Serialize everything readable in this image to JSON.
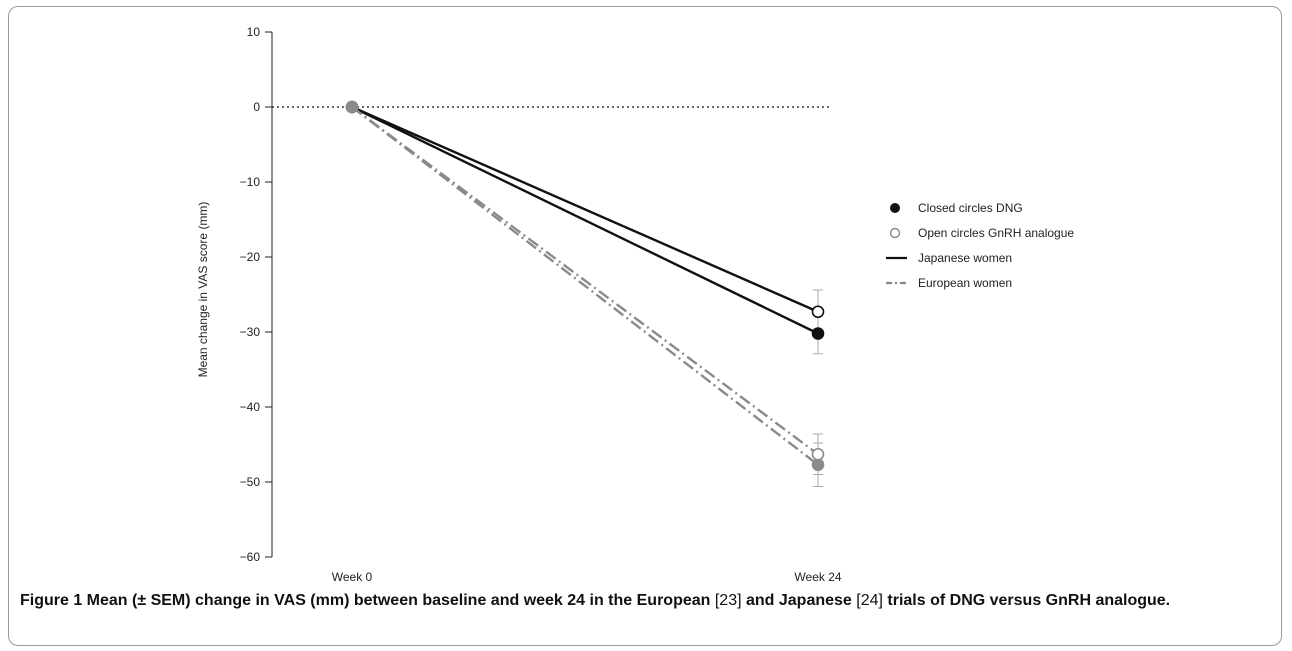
{
  "chart_data": {
    "type": "line",
    "title": "",
    "xlabel": "",
    "ylabel": "Mean change in VAS score (mm)",
    "categories": [
      "Week 0",
      "Week 24"
    ],
    "ylim": [
      -60,
      10
    ],
    "yticks": [
      10,
      0,
      -10,
      -20,
      -30,
      -40,
      -50,
      -60
    ],
    "reference_line": 0,
    "series": [
      {
        "name": "Japanese women - DNG",
        "values": [
          0,
          -30.2
        ],
        "sem": [
          0,
          2.7
        ],
        "marker": "closed",
        "style": "solid",
        "color": "#111111"
      },
      {
        "name": "Japanese women - GnRH analogue",
        "values": [
          0,
          -27.3
        ],
        "sem": [
          0,
          2.9
        ],
        "marker": "open",
        "style": "solid",
        "color": "#111111"
      },
      {
        "name": "European women - DNG",
        "values": [
          0,
          -47.7
        ],
        "sem": [
          0,
          2.9
        ],
        "marker": "closed",
        "style": "dashdot",
        "color": "#8a8a8a"
      },
      {
        "name": "European women - GnRH analogue",
        "values": [
          0,
          -46.3
        ],
        "sem": [
          0,
          2.7
        ],
        "marker": "open",
        "style": "dashdot",
        "color": "#8a8a8a"
      }
    ],
    "legend": {
      "position": "right",
      "entries": [
        {
          "label": "Closed circles DNG",
          "kind": "closed-circle"
        },
        {
          "label": "Open circles GnRH analogue",
          "kind": "open-circle"
        },
        {
          "label": "Japanese women",
          "kind": "solid-line"
        },
        {
          "label": "European women",
          "kind": "dashdot-line"
        }
      ]
    }
  },
  "caption": {
    "label": "Figure 1",
    "part1": " Mean (± SEM) change in VAS (mm) between baseline and week 24 in the European ",
    "ref1": "[23]",
    "part2": " and Japanese ",
    "ref2": "[24]",
    "part3": " trials of DNG versus GnRH analogue."
  }
}
